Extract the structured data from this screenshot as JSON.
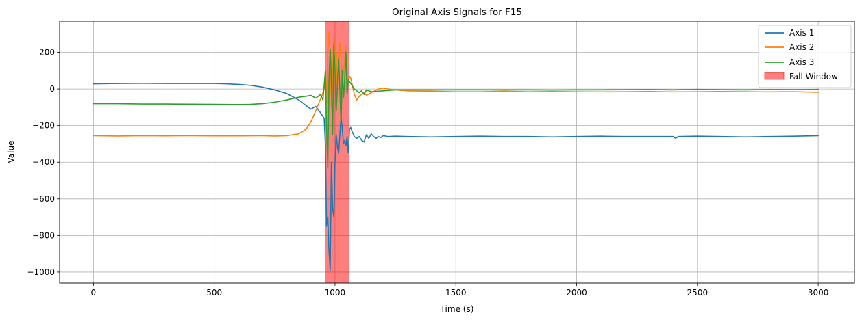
{
  "chart_data": {
    "type": "line",
    "title": "Original Axis Signals for F15",
    "xlabel": "Time (s)",
    "ylabel": "Value",
    "xlim": [
      -140,
      3150
    ],
    "ylim": [
      -1060,
      370
    ],
    "xticks": [
      0,
      500,
      1000,
      1500,
      2000,
      2500,
      3000
    ],
    "yticks": [
      -1000,
      -800,
      -600,
      -400,
      -200,
      0,
      200
    ],
    "xtick_labels": [
      "0",
      "500",
      "1000",
      "1500",
      "2000",
      "2500",
      "3000"
    ],
    "ytick_labels": [
      "−1000",
      "−800",
      "−600",
      "−400",
      "−200",
      "0",
      "200"
    ],
    "grid": true,
    "legend_position": "top-right",
    "highlight": {
      "label": "Fall Window",
      "x_start": 960,
      "x_end": 1060,
      "color": "#ff0000",
      "opacity": 0.5
    },
    "series": [
      {
        "name": "Axis 1",
        "color": "#1f77b4",
        "x": [
          0,
          100,
          200,
          300,
          400,
          500,
          550,
          600,
          650,
          700,
          750,
          800,
          850,
          880,
          900,
          920,
          940,
          955,
          960,
          965,
          970,
          975,
          980,
          985,
          990,
          995,
          1000,
          1005,
          1010,
          1015,
          1020,
          1025,
          1030,
          1035,
          1040,
          1045,
          1050,
          1055,
          1060,
          1065,
          1070,
          1080,
          1090,
          1100,
          1110,
          1120,
          1130,
          1140,
          1150,
          1160,
          1170,
          1180,
          1190,
          1200,
          1220,
          1250,
          1300,
          1400,
          1500,
          1600,
          1700,
          1800,
          1900,
          2000,
          2100,
          2200,
          2300,
          2400,
          2410,
          2420,
          2500,
          2600,
          2700,
          2800,
          2900,
          3000
        ],
        "y": [
          28,
          30,
          31,
          30,
          30,
          30,
          28,
          25,
          20,
          10,
          -5,
          -25,
          -60,
          -90,
          -110,
          -95,
          -130,
          -160,
          -300,
          -750,
          -700,
          -880,
          -990,
          -400,
          -650,
          -700,
          -400,
          -250,
          -320,
          -350,
          -250,
          -150,
          -220,
          -300,
          -280,
          -310,
          -260,
          -350,
          -220,
          -210,
          -230,
          -260,
          -270,
          -260,
          -280,
          -290,
          -250,
          -270,
          -245,
          -260,
          -270,
          -260,
          -265,
          -255,
          -260,
          -258,
          -260,
          -262,
          -260,
          -258,
          -260,
          -260,
          -262,
          -260,
          -258,
          -260,
          -260,
          -260,
          -270,
          -260,
          -258,
          -260,
          -262,
          -260,
          -258,
          -255
        ]
      },
      {
        "name": "Axis 2",
        "color": "#ff7f0e",
        "x": [
          0,
          100,
          200,
          300,
          400,
          500,
          600,
          700,
          750,
          800,
          850,
          880,
          900,
          920,
          935,
          945,
          955,
          960,
          965,
          970,
          975,
          980,
          985,
          990,
          995,
          1000,
          1005,
          1010,
          1015,
          1020,
          1025,
          1030,
          1035,
          1040,
          1045,
          1050,
          1055,
          1060,
          1065,
          1070,
          1080,
          1090,
          1100,
          1110,
          1120,
          1130,
          1150,
          1180,
          1200,
          1220,
          1250,
          1300,
          1400,
          1500,
          1600,
          1700,
          1800,
          1900,
          2000,
          2100,
          2200,
          2300,
          2400,
          2500,
          2600,
          2700,
          2800,
          2900,
          3000
        ],
        "y": [
          -255,
          -257,
          -255,
          -256,
          -255,
          -256,
          -256,
          -255,
          -257,
          -255,
          -245,
          -220,
          -180,
          -120,
          -70,
          -40,
          0,
          100,
          -80,
          200,
          310,
          150,
          -100,
          50,
          300,
          150,
          200,
          -50,
          100,
          250,
          150,
          50,
          100,
          150,
          230,
          100,
          40,
          70,
          60,
          30,
          -30,
          -60,
          -40,
          -30,
          -20,
          -35,
          -20,
          0,
          5,
          0,
          -5,
          -10,
          -12,
          -15,
          -15,
          -12,
          -15,
          -14,
          -15,
          -16,
          -15,
          -14,
          -16,
          -15,
          -14,
          -15,
          -16,
          -15,
          -18
        ]
      },
      {
        "name": "Axis 3",
        "color": "#2ca02c",
        "x": [
          0,
          100,
          200,
          300,
          400,
          500,
          600,
          650,
          700,
          750,
          800,
          850,
          880,
          900,
          920,
          940,
          950,
          960,
          965,
          970,
          975,
          980,
          985,
          990,
          995,
          1000,
          1005,
          1010,
          1015,
          1020,
          1025,
          1030,
          1035,
          1040,
          1045,
          1050,
          1055,
          1060,
          1070,
          1080,
          1090,
          1100,
          1110,
          1120,
          1130,
          1150,
          1200,
          1250,
          1300,
          1400,
          1500,
          1600,
          1700,
          1800,
          1900,
          2000,
          2100,
          2200,
          2300,
          2400,
          2500,
          2600,
          2700,
          2800,
          2900,
          3000
        ],
        "y": [
          -80,
          -80,
          -82,
          -82,
          -83,
          -84,
          -85,
          -84,
          -80,
          -72,
          -60,
          -45,
          -40,
          -35,
          -50,
          -30,
          -60,
          100,
          -200,
          -430,
          50,
          220,
          50,
          -250,
          240,
          100,
          -120,
          30,
          160,
          0,
          -200,
          100,
          -50,
          50,
          200,
          -30,
          50,
          40,
          20,
          0,
          -10,
          -20,
          -10,
          -30,
          -5,
          -15,
          -10,
          -5,
          -5,
          -5,
          -5,
          -5,
          -5,
          -5,
          -6,
          -5,
          -5,
          -4,
          -3,
          -5,
          -2,
          -4,
          -5,
          -3,
          -4,
          -2
        ]
      }
    ]
  }
}
